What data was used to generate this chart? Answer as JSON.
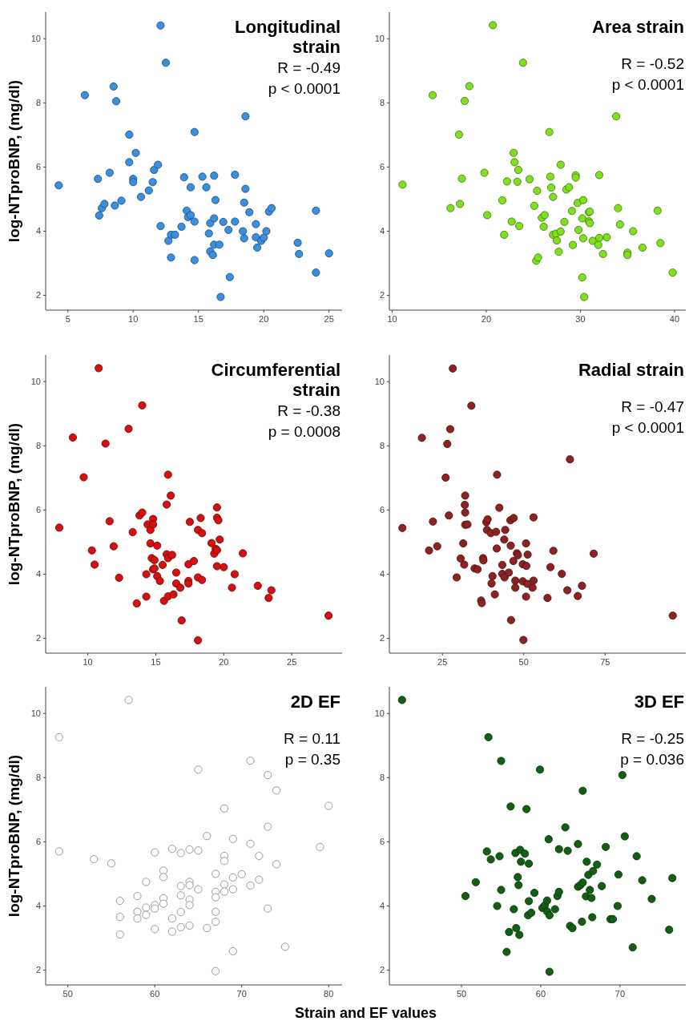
{
  "chart_data": [
    {
      "type": "scatter",
      "title": "Longitudinal strain",
      "ylabel": "log-NTproBNP, (mg/dl)",
      "annotations": [
        "R = -0.49",
        "p < 0.0001"
      ],
      "xlim": [
        3.3,
        26
      ],
      "xticks": [
        5,
        10,
        15,
        20,
        25
      ],
      "ylim": [
        1.54,
        10.83
      ],
      "yticks": [
        2,
        4,
        6,
        8,
        10
      ],
      "marker": "circle",
      "series": [
        {
          "color": "#3b8fe0",
          "x": [
            4.3,
            6.3,
            8.5,
            8.7,
            7.3,
            7.4,
            7.6,
            7.8,
            8.2,
            8.6,
            9.1,
            9.7,
            9.7,
            10.0,
            10.0,
            10.2,
            10.6,
            11.2,
            11.5,
            11.6,
            11.9,
            12.1,
            12.5,
            12.1,
            12.7,
            12.9,
            13.2,
            12.9,
            13.7,
            13.9,
            14.1,
            14.2,
            14.4,
            14.4,
            14.7,
            14.7,
            14.7,
            15.3,
            15.6,
            15.8,
            15.9,
            15.9,
            16.1,
            16.2,
            16.2,
            16.2,
            16.3,
            16.6,
            16.7,
            16.9,
            17.3,
            17.4,
            17.8,
            17.8,
            18.6,
            18.6,
            18.5,
            18.4,
            18.5,
            18.9,
            19.4,
            19.4,
            19.5,
            19.8,
            20.0,
            20.2,
            20.4,
            20.6,
            22.6,
            22.7,
            24.0,
            24.0,
            25.0
          ],
          "values": [
            5.43,
            8.24,
            8.51,
            8.05,
            5.63,
            4.49,
            4.72,
            4.85,
            5.82,
            4.8,
            4.95,
            7.01,
            6.15,
            5.63,
            5.53,
            6.44,
            5.07,
            5.27,
            5.53,
            5.91,
            6.07,
            10.41,
            9.25,
            4.16,
            3.7,
            3.89,
            3.89,
            3.18,
            4.14,
            5.68,
            4.64,
            4.44,
            4.5,
            5.37,
            7.09,
            4.3,
            3.1,
            5.7,
            5.37,
            3.93,
            4.25,
            3.37,
            3.26,
            5.73,
            4.4,
            3.58,
            4.97,
            3.58,
            1.95,
            4.29,
            4.04,
            2.57,
            4.3,
            5.76,
            7.58,
            5.32,
            4.89,
            4.0,
            3.78,
            4.59,
            4.22,
            3.81,
            3.49,
            3.7,
            3.8,
            4.0,
            4.61,
            4.72,
            3.64,
            3.29,
            4.64,
            2.71,
            3.31
          ]
        }
      ]
    },
    {
      "type": "scatter",
      "title": "Area strain",
      "annotations": [
        "R = -0.52",
        "p < 0.0001"
      ],
      "xlim": [
        9.7,
        41.2
      ],
      "xticks": [
        10,
        20,
        30,
        40
      ],
      "ylim": [
        1.54,
        10.83
      ],
      "yticks": [
        2,
        4,
        6,
        8,
        10
      ],
      "marker": "circle",
      "series": [
        {
          "color": "#7fe020",
          "x": [
            11.1,
            14.3,
            18.2,
            17.7,
            17.1,
            17.4,
            16.2,
            17.2,
            19.8,
            20.1,
            20.7,
            23.9,
            21.7,
            21.9,
            22.2,
            22.7,
            22.9,
            23.0,
            23.4,
            23.3,
            23.5,
            24.6,
            25.1,
            25.4,
            25.3,
            25.5,
            25.9,
            26.2,
            26.1,
            26.7,
            26.8,
            26.9,
            27.1,
            27.1,
            27.4,
            27.5,
            27.7,
            27.9,
            27.9,
            28.3,
            28.5,
            28.8,
            29.1,
            29.2,
            29.5,
            29.5,
            29.7,
            29.8,
            30.3,
            30.2,
            30.3,
            30.2,
            30.4,
            30.9,
            31.0,
            30.9,
            31.0,
            31.3,
            32.0,
            32.0,
            31.9,
            32.4,
            32.8,
            33.8,
            34.0,
            34.2,
            35.0,
            35.0,
            35.6,
            36.6,
            38.2,
            38.5,
            39.8
          ],
          "values": [
            5.45,
            8.24,
            8.52,
            8.06,
            7.01,
            5.64,
            4.72,
            4.85,
            5.82,
            4.5,
            10.42,
            9.25,
            4.96,
            3.89,
            5.55,
            4.3,
            6.44,
            6.15,
            5.91,
            5.54,
            4.16,
            5.62,
            4.79,
            5.26,
            3.08,
            3.18,
            4.42,
            4.5,
            4.14,
            7.09,
            5.7,
            5.36,
            5.07,
            3.89,
            3.92,
            3.71,
            3.36,
            6.07,
            3.99,
            4.29,
            5.3,
            5.37,
            4.63,
            3.57,
            5.74,
            5.67,
            4.88,
            4.04,
            4.97,
            4.4,
            3.78,
            2.56,
            1.95,
            4.59,
            4.61,
            4.31,
            4.25,
            3.7,
            5.75,
            3.79,
            3.57,
            3.29,
            3.81,
            7.58,
            4.72,
            4.21,
            3.33,
            3.26,
            4.0,
            3.49,
            4.64,
            3.63,
            2.71
          ]
        }
      ]
    },
    {
      "type": "scatter",
      "title": "Circumferential strain",
      "ylabel": "log-NTproBNP, (mg/dl)",
      "annotations": [
        "R = -0.38",
        "p = 0.0008"
      ],
      "xlim": [
        6.9,
        28.7
      ],
      "xticks": [
        10,
        15,
        20,
        25
      ],
      "ylim": [
        1.54,
        10.83
      ],
      "yticks": [
        2,
        4,
        6,
        8,
        10
      ],
      "marker": "circle",
      "series": [
        {
          "color": "#d41010",
          "x": [
            7.9,
            8.9,
            9.7,
            10.8,
            11.3,
            10.3,
            10.5,
            11.6,
            11.9,
            12.3,
            13.0,
            13.3,
            14.0,
            13.8,
            14.0,
            13.6,
            14.3,
            14.3,
            14.4,
            14.6,
            14.6,
            14.8,
            14.8,
            14.7,
            14.9,
            14.8,
            14.9,
            15.1,
            15.1,
            15.3,
            15.5,
            15.6,
            15.8,
            15.9,
            16.1,
            15.8,
            15.9,
            16.2,
            15.9,
            16.3,
            16.5,
            16.5,
            16.8,
            16.9,
            17.4,
            17.4,
            17.4,
            17.5,
            17.8,
            18.1,
            18.1,
            18.3,
            18.4,
            18.4,
            18.1,
            19.1,
            19.3,
            19.4,
            19.5,
            19.5,
            19.5,
            19.6,
            19.7,
            19.5,
            20.0,
            20.6,
            20.8,
            21.4,
            22.5,
            23.3,
            23.5,
            27.7
          ],
          "values": [
            5.45,
            8.26,
            7.02,
            10.42,
            8.07,
            4.74,
            4.3,
            5.65,
            4.87,
            3.89,
            8.53,
            5.31,
            9.26,
            5.83,
            5.92,
            3.09,
            4.0,
            3.3,
            5.55,
            5.38,
            4.96,
            5.72,
            5.55,
            4.5,
            4.44,
            4.15,
            4.18,
            4.89,
            3.94,
            3.79,
            4.29,
            3.17,
            6.17,
            7.1,
            6.45,
            4.62,
            4.5,
            4.6,
            3.31,
            3.37,
            4.05,
            3.71,
            3.58,
            2.56,
            4.31,
            3.79,
            3.71,
            5.63,
            4.41,
            5.38,
            3.9,
            5.75,
            5.28,
            3.82,
            1.94,
            4.97,
            4.64,
            4.79,
            4.75,
            6.08,
            5.76,
            5.68,
            5.08,
            4.25,
            4.22,
            3.58,
            4.0,
            4.65,
            3.64,
            3.26,
            3.5,
            2.71
          ]
        }
      ]
    },
    {
      "type": "scatter",
      "title": "Radial strain",
      "annotations": [
        "R = -0.47",
        "p < 0.0001"
      ],
      "xlim": [
        8.7,
        99.8
      ],
      "xticks": [
        25,
        50,
        75
      ],
      "ylim": [
        1.54,
        10.83
      ],
      "yticks": [
        2,
        4,
        6,
        8,
        10
      ],
      "marker": "circle",
      "series": [
        {
          "color": "#8c2222",
          "x": [
            12.7,
            18.7,
            20.9,
            22.1,
            23.4,
            26.0,
            26.5,
            27.4,
            27.0,
            28.2,
            29.4,
            30.6,
            31.4,
            31.7,
            32.0,
            31.9,
            32.0,
            32.0,
            32.7,
            33.9,
            34.9,
            35.8,
            36.9,
            37.1,
            37.5,
            37.6,
            38.5,
            38.9,
            38.7,
            39.9,
            41.5,
            40.4,
            40.1,
            41.1,
            41.8,
            41.7,
            42.5,
            43.4,
            43.4,
            44.0,
            44.3,
            44.1,
            45.4,
            45.9,
            46.9,
            46.0,
            46.8,
            46.1,
            47.4,
            47.4,
            47.9,
            48.2,
            49.7,
            49.7,
            50.7,
            50.8,
            51.2,
            51.1,
            50.7,
            49.9,
            52.7,
            53.0,
            53.0,
            57.3,
            58.2,
            59.1,
            61.7,
            63.4,
            64.2,
            66.6,
            67.9,
            71.5,
            95.8
          ],
          "values": [
            5.44,
            8.25,
            4.74,
            5.64,
            4.87,
            7.01,
            8.06,
            8.52,
            5.83,
            10.41,
            3.9,
            4.49,
            4.96,
            4.3,
            6.45,
            6.16,
            5.92,
            5.54,
            5.55,
            9.25,
            4.18,
            4.15,
            3.18,
            3.1,
            4.5,
            4.43,
            5.62,
            5.71,
            5.38,
            5.28,
            5.32,
            3.94,
            3.71,
            3.37,
            7.1,
            4.8,
            6.07,
            4.29,
            4.01,
            5.08,
            5.38,
            3.9,
            4.05,
            5.68,
            5.75,
            4.89,
            4.41,
            2.57,
            3.8,
            3.58,
            4.65,
            4.59,
            4.31,
            3.78,
            4.96,
            4.26,
            4.61,
            3.7,
            3.3,
            1.95,
            3.58,
            3.8,
            5.77,
            3.26,
            4.22,
            4.73,
            4.01,
            3.5,
            7.58,
            3.32,
            3.64,
            4.64,
            2.71
          ]
        }
      ]
    },
    {
      "type": "scatter",
      "title": "2D EF",
      "ylabel": "log-NTproBNP, (mg/dl)",
      "xlabel": "Strain and EF values",
      "annotations": [
        "R = 0.11",
        "p = 0.35"
      ],
      "xlim": [
        47.45,
        81.55
      ],
      "xticks": [
        50,
        60,
        70,
        80
      ],
      "ylim": [
        1.54,
        10.83
      ],
      "yticks": [
        2,
        4,
        6,
        8,
        10
      ],
      "marker": "circle",
      "series": [
        {
          "color": "#ffffff",
          "x": [
            49,
            49,
            53,
            55,
            57,
            56,
            56,
            56,
            58,
            58,
            58,
            59,
            59,
            59,
            60,
            60,
            60,
            60,
            61,
            61,
            61,
            61,
            62,
            62,
            62,
            63,
            63,
            63,
            63,
            63,
            64,
            64,
            64,
            64,
            64,
            64,
            65,
            65,
            65,
            66,
            66,
            67,
            67,
            67,
            67,
            67,
            67,
            68,
            68,
            68,
            68,
            68,
            69,
            69,
            69,
            69,
            70,
            71,
            71,
            71,
            72,
            72,
            73,
            73,
            73,
            74,
            74,
            75,
            79,
            80
          ],
          "values": [
            9.26,
            5.7,
            5.46,
            5.33,
            10.42,
            4.16,
            3.66,
            3.11,
            4.31,
            3.82,
            3.61,
            4.75,
            3.95,
            3.72,
            5.67,
            4.03,
            3.92,
            3.28,
            5.1,
            4.9,
            4.24,
            4.07,
            5.78,
            3.61,
            3.2,
            5.65,
            4.62,
            4.33,
            3.81,
            3.34,
            5.76,
            4.75,
            4.65,
            4.2,
            4.03,
            3.39,
            8.25,
            5.73,
            4.52,
            6.18,
            3.31,
            5.0,
            4.44,
            4.27,
            3.82,
            3.51,
            1.97,
            7.04,
            5.56,
            5.4,
            4.67,
            4.45,
            6.09,
            4.89,
            4.52,
            2.59,
            4.99,
            8.53,
            5.94,
            4.64,
            5.56,
            4.82,
            8.08,
            6.47,
            3.92,
            7.6,
            5.3,
            2.73,
            5.84,
            7.12
          ]
        }
      ]
    },
    {
      "type": "scatter",
      "title": "3D EF",
      "annotations": [
        "R = -0.25",
        "p = 0.036"
      ],
      "xlim": [
        40.9,
        78.3
      ],
      "xticks": [
        50,
        60,
        70
      ],
      "ylim": [
        1.54,
        10.83
      ],
      "yticks": [
        2,
        4,
        6,
        8,
        10
      ],
      "marker": "circle",
      "series": [
        {
          "color": "#125e12",
          "x": [
            42.5,
            50.5,
            51.8,
            53.4,
            53.2,
            53.7,
            55.0,
            54.8,
            55.0,
            54.5,
            55.7,
            56.0,
            56.2,
            56.6,
            56.8,
            56.9,
            57.1,
            57.2,
            57.3,
            57.4,
            57.5,
            58.0,
            58.2,
            58.5,
            58.5,
            58.4,
            58.8,
            59.2,
            59.9,
            60.2,
            60.5,
            60.8,
            60.8,
            61.1,
            61.0,
            61.1,
            61.8,
            62.1,
            62.3,
            62.3,
            63.1,
            63.4,
            63.7,
            64.0,
            64.7,
            64.7,
            65.0,
            65.3,
            65.2,
            65.3,
            65.7,
            65.8,
            66.0,
            66.2,
            66.4,
            66.5,
            66.6,
            67.1,
            67.7,
            68.2,
            68.8,
            69.1,
            69.7,
            69.8,
            70.3,
            70.6,
            71.6,
            72.1,
            72.8,
            74.0,
            76.2,
            76.6
          ],
          "values": [
            10.42,
            4.31,
            4.74,
            9.26,
            5.7,
            5.45,
            8.52,
            5.55,
            4.5,
            4.0,
            2.57,
            3.19,
            7.1,
            3.9,
            5.65,
            3.31,
            4.9,
            4.65,
            3.1,
            5.75,
            5.38,
            5.63,
            7.02,
            5.32,
            4.15,
            3.71,
            3.79,
            4.41,
            8.25,
            3.94,
            4.02,
            4.17,
            3.83,
            3.71,
            6.08,
            1.95,
            3.9,
            4.31,
            4.44,
            5.77,
            6.45,
            5.72,
            3.38,
            3.31,
            5.93,
            4.6,
            4.65,
            7.59,
            3.51,
            4.73,
            4.3,
            5.38,
            4.97,
            4.5,
            4.25,
            3.65,
            5.09,
            5.29,
            4.62,
            5.84,
            3.59,
            3.59,
            4.0,
            4.98,
            8.08,
            6.17,
            2.71,
            5.55,
            4.8,
            4.22,
            3.26,
            4.87
          ]
        }
      ]
    }
  ]
}
